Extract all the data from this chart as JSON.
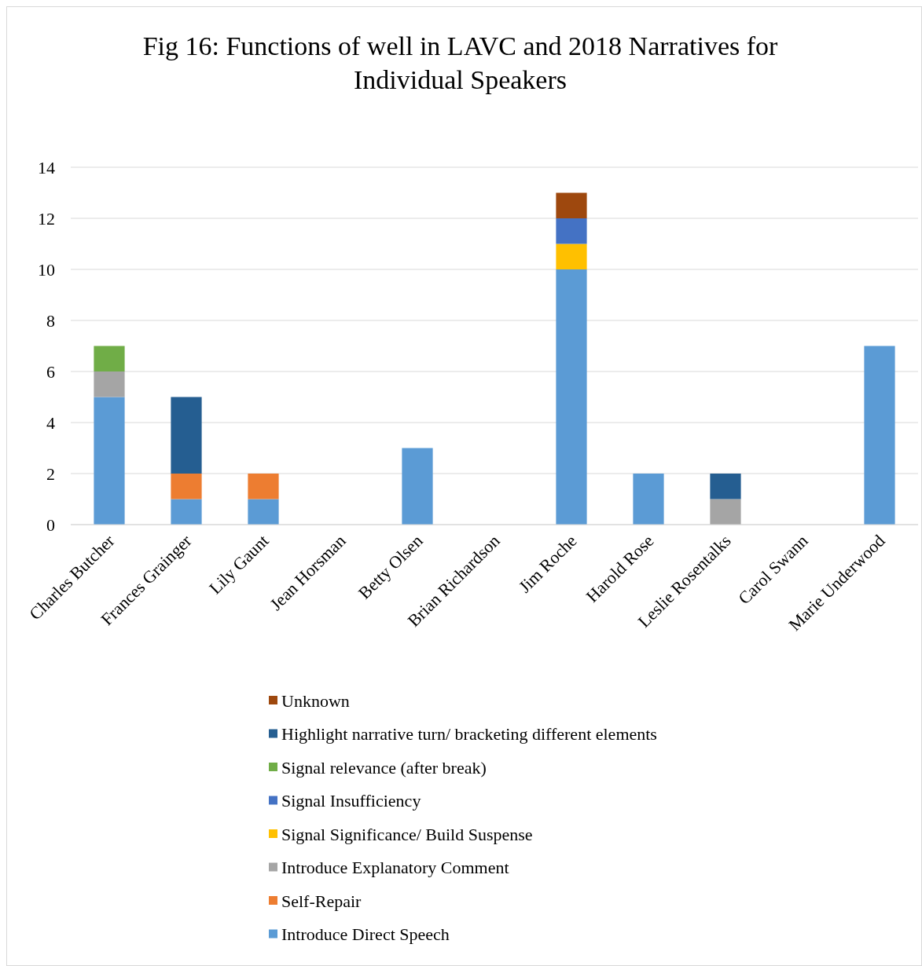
{
  "chart_data": {
    "type": "bar",
    "title": "Fig 16: Functions of well in LAVC and 2018 Narratives for Individual Speakers",
    "stacked": true,
    "legend": "bottom",
    "grid": "y",
    "categories": [
      "Charles Butcher",
      "Frances Grainger",
      "Lily Gaunt",
      "Jean Horsman",
      "Betty Olsen",
      "Brian Richardson",
      "Jim Roche",
      "Harold Rose",
      "Leslie Rosentalks",
      "Carol Swann",
      "Marie Underwood"
    ],
    "ylim": [
      0,
      14
    ],
    "yticks": [
      0,
      2,
      4,
      6,
      8,
      10,
      12,
      14
    ],
    "series": [
      {
        "name": "Introduce Direct Speech",
        "color": "#5b9bd5",
        "values": [
          5,
          1,
          1,
          0,
          3,
          0,
          10,
          2,
          0,
          0,
          7
        ]
      },
      {
        "name": "Self-Repair",
        "color": "#ed7d31",
        "values": [
          0,
          1,
          1,
          0,
          0,
          0,
          0,
          0,
          0,
          0,
          0
        ]
      },
      {
        "name": "Introduce Explanatory Comment",
        "color": "#a5a5a5",
        "values": [
          1,
          0,
          0,
          0,
          0,
          0,
          0,
          0,
          1,
          0,
          0
        ]
      },
      {
        "name": "Signal Significance/ Build Suspense",
        "color": "#ffc000",
        "values": [
          0,
          0,
          0,
          0,
          0,
          0,
          1,
          0,
          0,
          0,
          0
        ]
      },
      {
        "name": "Signal Insufficiency",
        "color": "#4472c4",
        "values": [
          0,
          0,
          0,
          0,
          0,
          0,
          1,
          0,
          0,
          0,
          0
        ]
      },
      {
        "name": "Signal relevance (after break)",
        "color": "#70ad47",
        "values": [
          1,
          0,
          0,
          0,
          0,
          0,
          0,
          0,
          0,
          0,
          0
        ]
      },
      {
        "name": "Highlight narrative turn/ bracketing different elements",
        "color": "#255e91",
        "values": [
          0,
          3,
          0,
          0,
          0,
          0,
          0,
          0,
          1,
          0,
          0
        ]
      },
      {
        "name": "Unknown",
        "color": "#9e480e",
        "values": [
          0,
          0,
          0,
          0,
          0,
          0,
          1,
          0,
          0,
          0,
          0
        ]
      }
    ]
  }
}
